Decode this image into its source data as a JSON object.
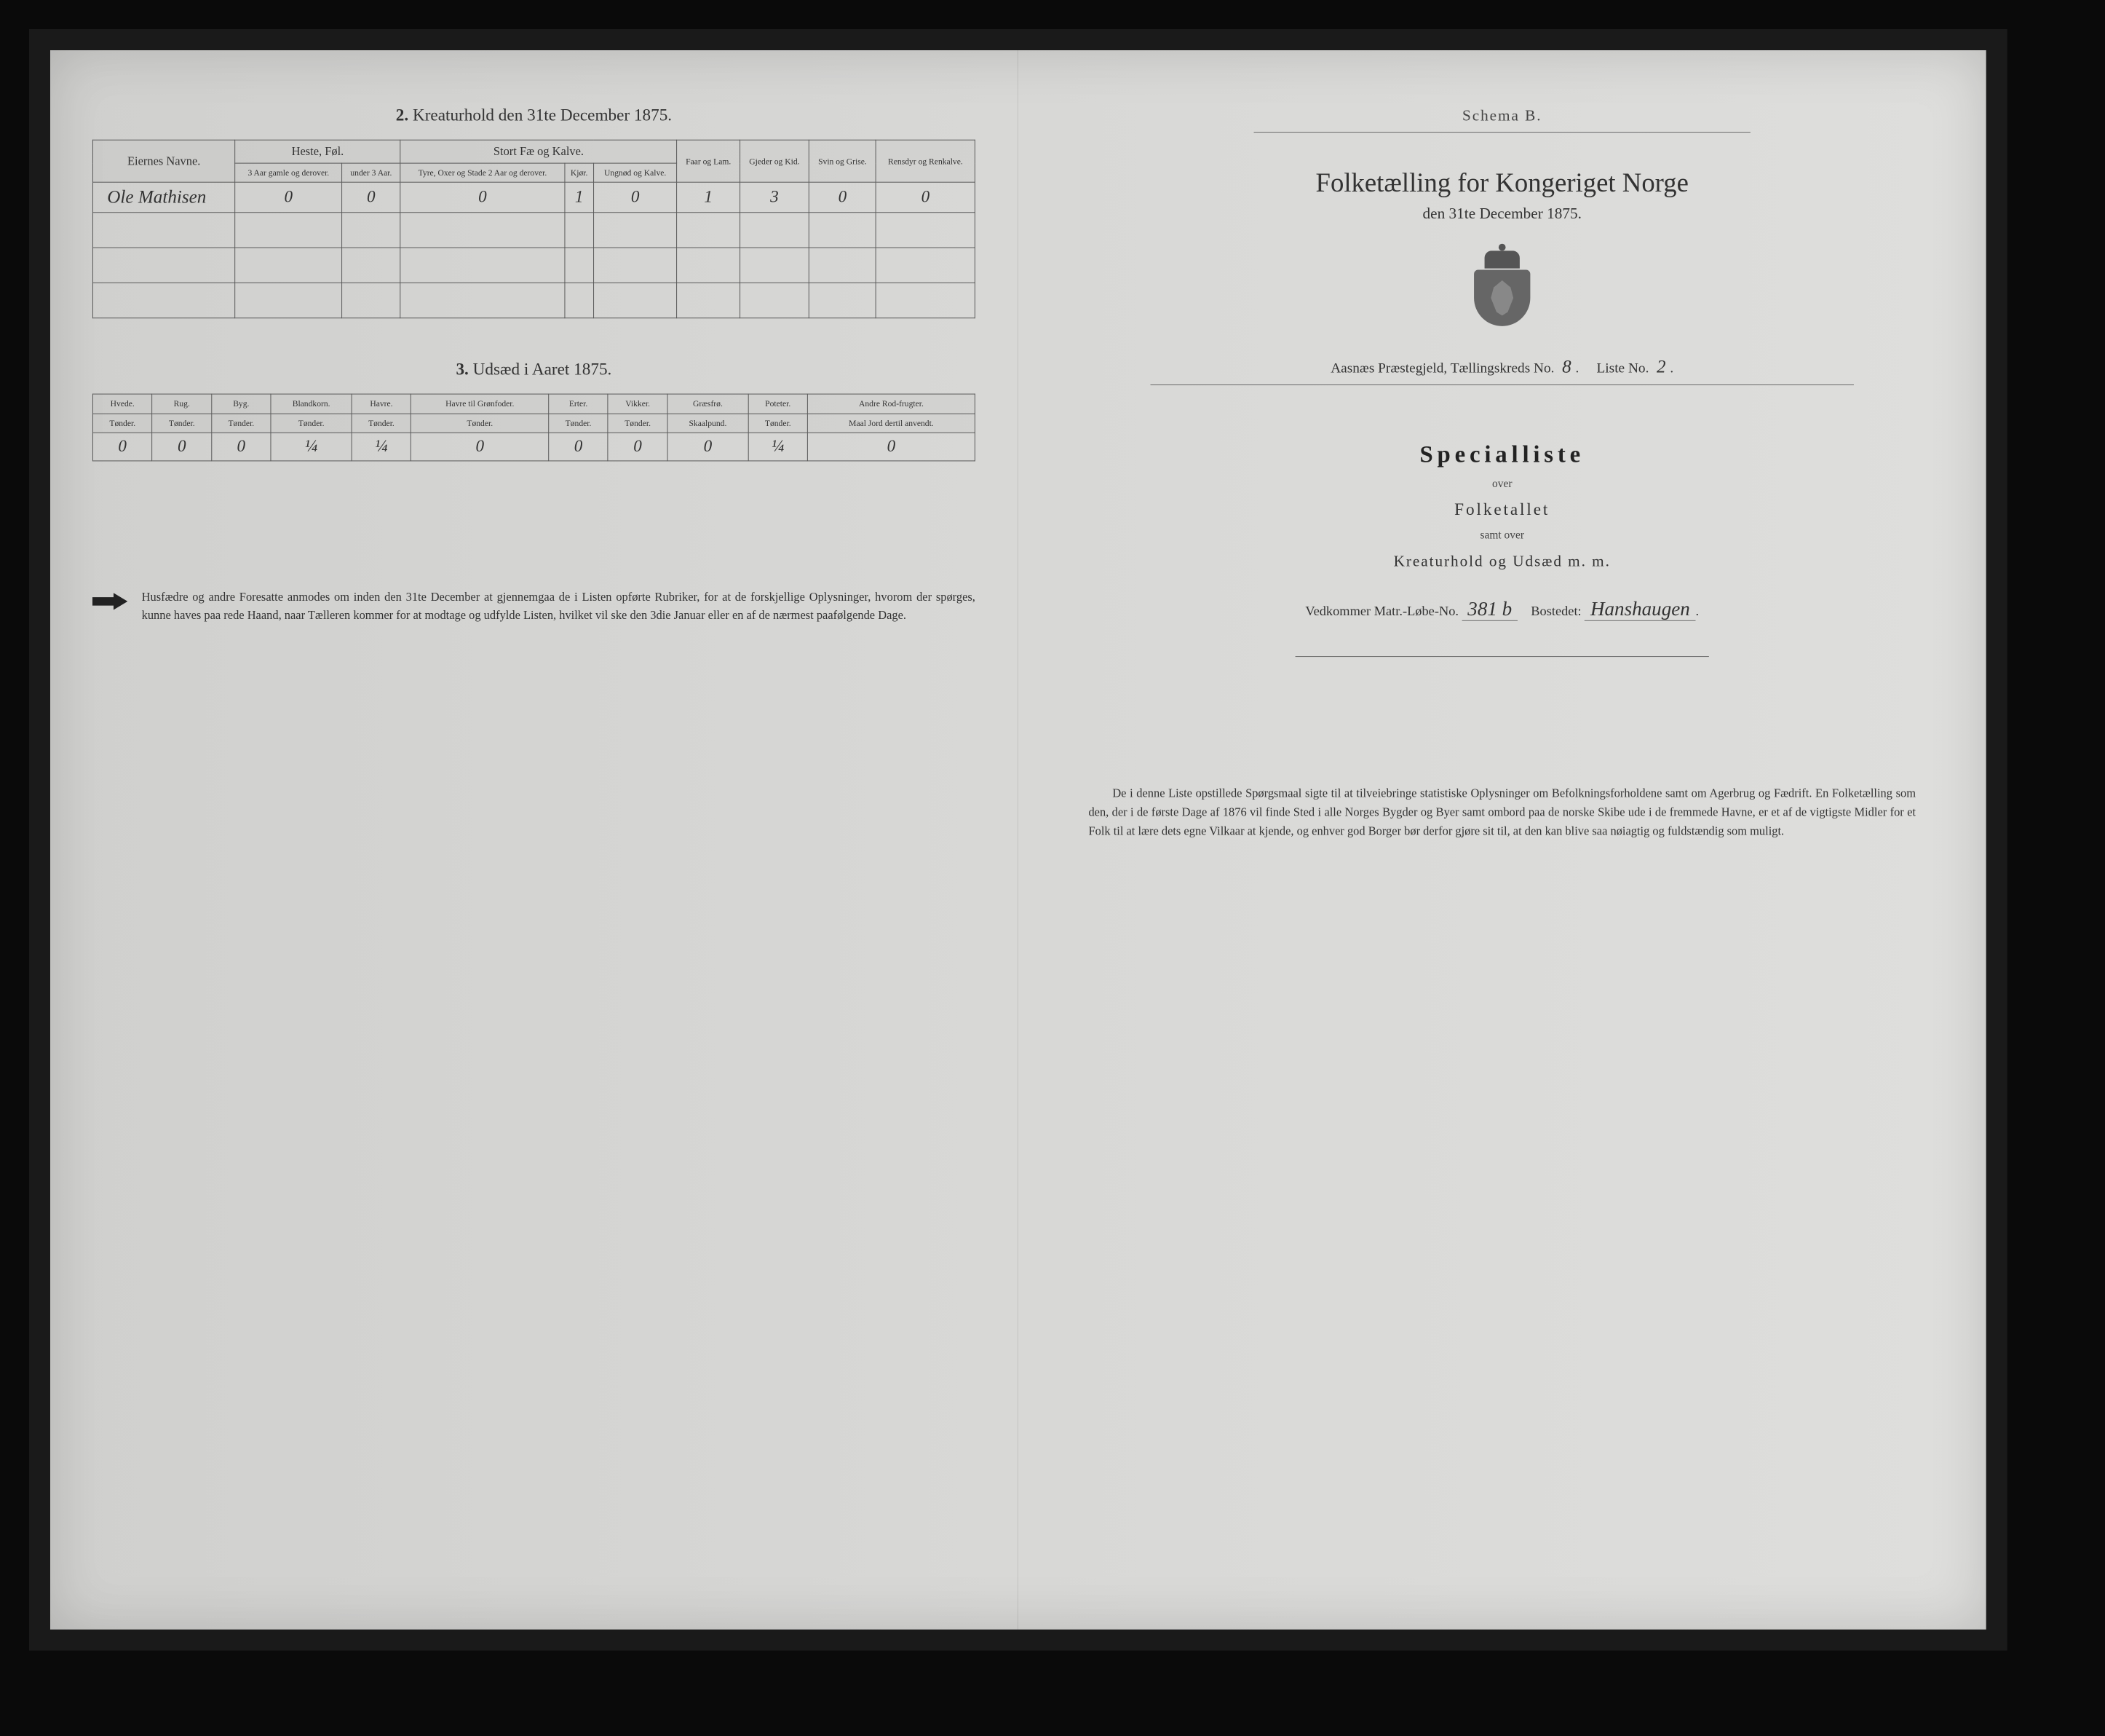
{
  "left": {
    "section2": {
      "title_num": "2.",
      "title": "Kreaturhold den 31te December 1875.",
      "col_owner": "Eiernes Navne.",
      "group_heste": "Heste, Føl.",
      "group_stort": "Stort Fæ og Kalve.",
      "col_faar": "Faar og Lam.",
      "col_gjeder": "Gjeder og Kid.",
      "col_svin": "Svin og Grise.",
      "col_rensdyr": "Rensdyr og Renkalve.",
      "sub_heste_a": "3 Aar gamle og derover.",
      "sub_heste_b": "under 3 Aar.",
      "sub_stort_a": "Tyre, Oxer og Stade 2 Aar og derover.",
      "sub_stort_b": "Kjør.",
      "sub_stort_c": "Ungnød og Kalve.",
      "row1_name": "Ole Mathisen",
      "row1": [
        "0",
        "0",
        "0",
        "1",
        "0",
        "1",
        "3",
        "0",
        "0"
      ]
    },
    "section3": {
      "title_num": "3.",
      "title": "Udsæd i Aaret 1875.",
      "cols": [
        {
          "h": "Hvede.",
          "s": "Tønder."
        },
        {
          "h": "Rug.",
          "s": "Tønder."
        },
        {
          "h": "Byg.",
          "s": "Tønder."
        },
        {
          "h": "Blandkorn.",
          "s": "Tønder."
        },
        {
          "h": "Havre.",
          "s": "Tønder."
        },
        {
          "h": "Havre til Grønfoder.",
          "s": "Tønder."
        },
        {
          "h": "Erter.",
          "s": "Tønder."
        },
        {
          "h": "Vikker.",
          "s": "Tønder."
        },
        {
          "h": "Græsfrø.",
          "s": "Skaalpund."
        },
        {
          "h": "Poteter.",
          "s": "Tønder."
        },
        {
          "h": "Andre Rod-frugter.",
          "s": "Maal Jord dertil anvendt."
        }
      ],
      "row": [
        "0",
        "0",
        "0",
        "¼",
        "¼",
        "0",
        "0",
        "0",
        "0",
        "¼",
        "0"
      ]
    },
    "footnote": "Husfædre og andre Foresatte anmodes om inden den 31te December at gjennemgaa de i Listen opførte Rubriker, for at de forskjellige Oplysninger, hvorom der spørges, kunne haves paa rede Haand, naar Tælleren kommer for at modtage og udfylde Listen, hvilket vil ske den 3die Januar eller en af de nærmest paafølgende Dage."
  },
  "right": {
    "schema": "Schema B.",
    "main_title": "Folketælling for Kongeriget Norge",
    "sub_date": "den 31te December 1875.",
    "region_prefix": "Aasnæs Præstegjeld,  Tællingskreds No.",
    "kreds_no": "8",
    "liste_label": "Liste No.",
    "liste_no": "2",
    "special": "Specialliste",
    "over": "over",
    "folketallet": "Folketallet",
    "samt": "samt over",
    "kreatur": "Kreaturhold og Udsæd m. m.",
    "vedkommer_a": "Vedkommer Matr.-Løbe-No.",
    "matr_no": "381 b",
    "bostedet_label": "Bostedet:",
    "bostedet": "Hanshaugen",
    "bottom": "De i denne Liste opstillede Spørgsmaal sigte til at tilveiebringe statistiske Oplysninger om Befolkningsforholdene samt om Agerbrug og Fædrift. En Folketælling som den, der i de første Dage af 1876 vil finde Sted i alle Norges Bygder og Byer samt ombord paa de norske Skibe ude i de fremmede Havne, er et af de vigtigste Midler for et Folk til at lære dets egne Vilkaar at kjende, og enhver god Borger bør derfor gjøre sit til, at den kan blive saa nøiagtig og fuldstændig som muligt."
  }
}
